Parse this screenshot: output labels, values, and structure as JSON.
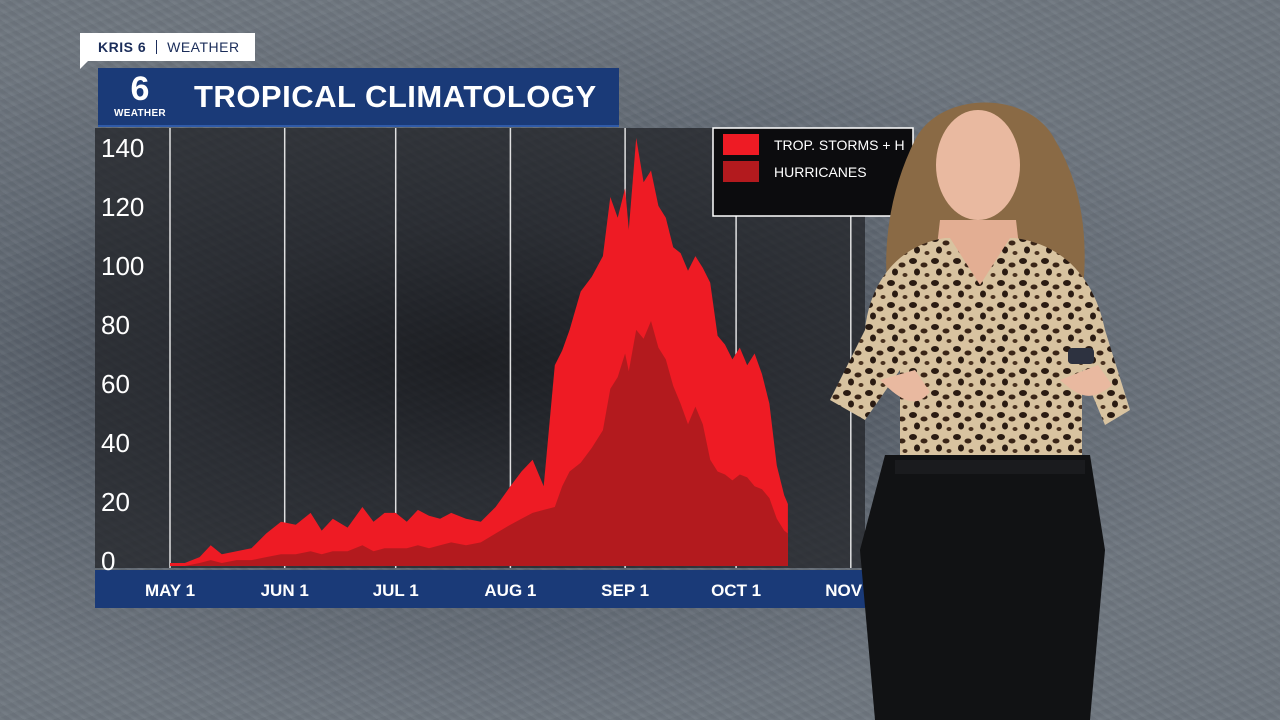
{
  "brand": {
    "station": "KRIS 6",
    "section": "WEATHER",
    "logo_number": "6",
    "logo_label": "WEATHER"
  },
  "title": "TROPICAL CLIMATOLOGY",
  "colors": {
    "storms": "#ee1b24",
    "hurricanes": "#b31a1e",
    "axis_bar": "#1a3a78",
    "title_bar": "#1a3a78",
    "plot_bg": "#1e2024"
  },
  "legend": {
    "items": [
      {
        "label": "TROP. STORMS + H",
        "swatch": "storms"
      },
      {
        "label": "HURRICANES",
        "swatch": "hurricanes"
      }
    ]
  },
  "chart_data": {
    "type": "area",
    "title": "TROPICAL CLIMATOLOGY",
    "xlabel": "",
    "ylabel": "",
    "ylim": [
      0,
      145
    ],
    "yticks": [
      0,
      20,
      40,
      60,
      80,
      100,
      120,
      140
    ],
    "xlim": [
      0,
      167
    ],
    "xticks": [
      {
        "day": 0,
        "label": "MAY 1"
      },
      {
        "day": 31,
        "label": "JUN 1"
      },
      {
        "day": 61,
        "label": "JUL 1"
      },
      {
        "day": 92,
        "label": "AUG 1"
      },
      {
        "day": 123,
        "label": "SEP 1"
      },
      {
        "day": 153,
        "label": "OCT 1"
      },
      {
        "day": 184,
        "label": "NOV 1"
      }
    ],
    "grid": true,
    "legend_position": "top-right",
    "series": [
      {
        "name": "TROP. STORMS + H",
        "color_key": "storms",
        "x": [
          0,
          4,
          8,
          11,
          14,
          18,
          22,
          26,
          30,
          34,
          38,
          41,
          44,
          48,
          52,
          55,
          58,
          61,
          64,
          67,
          70,
          73,
          76,
          80,
          84,
          88,
          92,
          95,
          98,
          101,
          104,
          106,
          108,
          111,
          114,
          117,
          119,
          121,
          123,
          124,
          126,
          128,
          130,
          132,
          134,
          136,
          138,
          140,
          142,
          144,
          146,
          148,
          150,
          152,
          154,
          156,
          158,
          160,
          162,
          164,
          166,
          167
        ],
        "y": [
          1,
          1,
          3,
          7,
          4,
          5,
          6,
          11,
          15,
          14,
          18,
          12,
          16,
          13,
          20,
          15,
          18,
          18,
          15,
          19,
          17,
          16,
          18,
          16,
          15,
          20,
          27,
          32,
          36,
          27,
          68,
          73,
          80,
          93,
          98,
          105,
          125,
          118,
          128,
          114,
          145,
          130,
          134,
          122,
          118,
          108,
          106,
          100,
          105,
          101,
          96,
          78,
          75,
          70,
          74,
          68,
          72,
          65,
          55,
          34,
          24,
          21
        ]
      },
      {
        "name": "HURRICANES",
        "color_key": "hurricanes",
        "x": [
          0,
          4,
          8,
          11,
          14,
          18,
          22,
          26,
          30,
          34,
          38,
          41,
          44,
          48,
          52,
          55,
          58,
          61,
          64,
          67,
          70,
          73,
          76,
          80,
          84,
          88,
          92,
          95,
          98,
          101,
          104,
          106,
          108,
          111,
          114,
          117,
          119,
          121,
          123,
          124,
          126,
          128,
          130,
          132,
          134,
          136,
          138,
          140,
          142,
          144,
          146,
          148,
          150,
          152,
          154,
          156,
          158,
          160,
          162,
          164,
          166,
          167
        ],
        "y": [
          0,
          0,
          1,
          2,
          1,
          2,
          2,
          3,
          4,
          4,
          5,
          4,
          5,
          5,
          7,
          5,
          6,
          6,
          6,
          7,
          6,
          7,
          8,
          7,
          8,
          11,
          14,
          16,
          18,
          19,
          20,
          27,
          32,
          35,
          40,
          46,
          60,
          64,
          72,
          66,
          80,
          77,
          83,
          74,
          70,
          61,
          55,
          48,
          54,
          48,
          36,
          32,
          31,
          29,
          31,
          30,
          27,
          26,
          23,
          16,
          12,
          11
        ]
      }
    ]
  }
}
